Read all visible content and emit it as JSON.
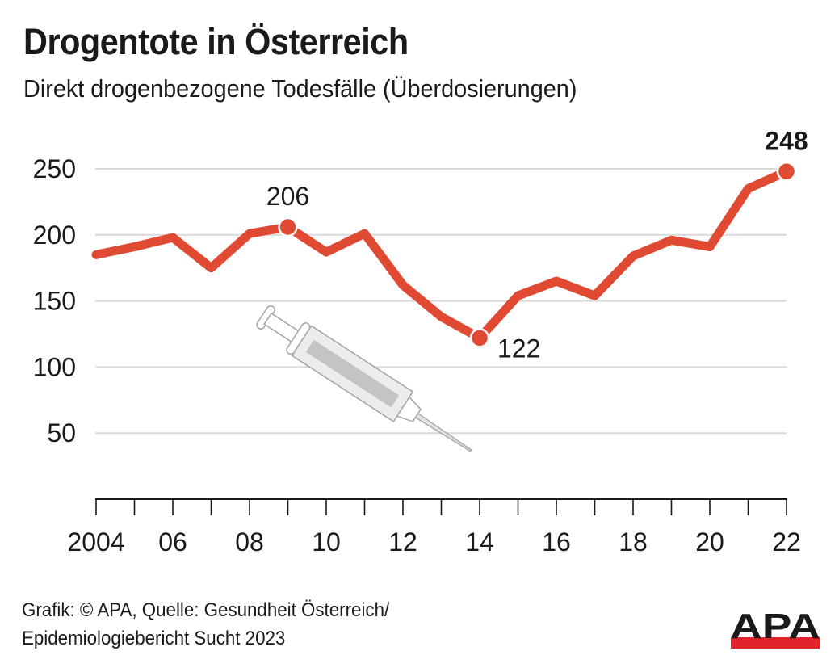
{
  "header": {
    "title": "Drogentote in Österreich",
    "subtitle": "Direkt drogenbezogene Todesfälle (Überdosierungen)"
  },
  "footer": {
    "source_line1": "Grafik: © APA, Quelle: Gesundheit Österreich/",
    "source_line2": "Epidemiologiebericht Sucht 2023",
    "logo_text": "APA"
  },
  "colors": {
    "line": "#e04a33",
    "grid": "#d9d9d9",
    "axis": "#1a1a1a",
    "logo_red": "#e3232b",
    "logo_black": "#1a1a1a"
  },
  "chart_data": {
    "type": "line",
    "title": "Drogentote in Österreich",
    "subtitle": "Direkt drogenbezogene Todesfälle (Überdosierungen)",
    "xlabel": "",
    "ylabel": "",
    "x": [
      2004,
      2005,
      2006,
      2007,
      2008,
      2009,
      2010,
      2011,
      2012,
      2013,
      2014,
      2015,
      2016,
      2017,
      2018,
      2019,
      2020,
      2021,
      2022
    ],
    "series": [
      {
        "name": "Direkt drogenbezogene Todesfälle",
        "values": [
          185,
          191,
          198,
          175,
          201,
          206,
          187,
          201,
          162,
          138,
          122,
          154,
          165,
          154,
          184,
          196,
          191,
          235,
          248
        ]
      }
    ],
    "ylim": [
      0,
      250
    ],
    "xlim": [
      2004,
      2022
    ],
    "yticks": [
      50,
      100,
      150,
      200,
      250
    ],
    "ytick_labels": [
      "50",
      "100",
      "150",
      "200",
      "250"
    ],
    "xtick_labels": [
      {
        "x": 2004,
        "label": "2004"
      },
      {
        "x": 2006,
        "label": "06"
      },
      {
        "x": 2008,
        "label": "08"
      },
      {
        "x": 2010,
        "label": "10"
      },
      {
        "x": 2012,
        "label": "12"
      },
      {
        "x": 2014,
        "label": "14"
      },
      {
        "x": 2016,
        "label": "16"
      },
      {
        "x": 2018,
        "label": "18"
      },
      {
        "x": 2020,
        "label": "20"
      },
      {
        "x": 2022,
        "label": "22"
      }
    ],
    "annotations": [
      {
        "x": 2009,
        "value": 206,
        "label": "206",
        "position": "above",
        "bold": false
      },
      {
        "x": 2014,
        "value": 122,
        "label": "122",
        "position": "right",
        "bold": false
      },
      {
        "x": 2022,
        "value": 248,
        "label": "248",
        "position": "above",
        "bold": true
      }
    ],
    "grid": true,
    "legend": "none"
  }
}
